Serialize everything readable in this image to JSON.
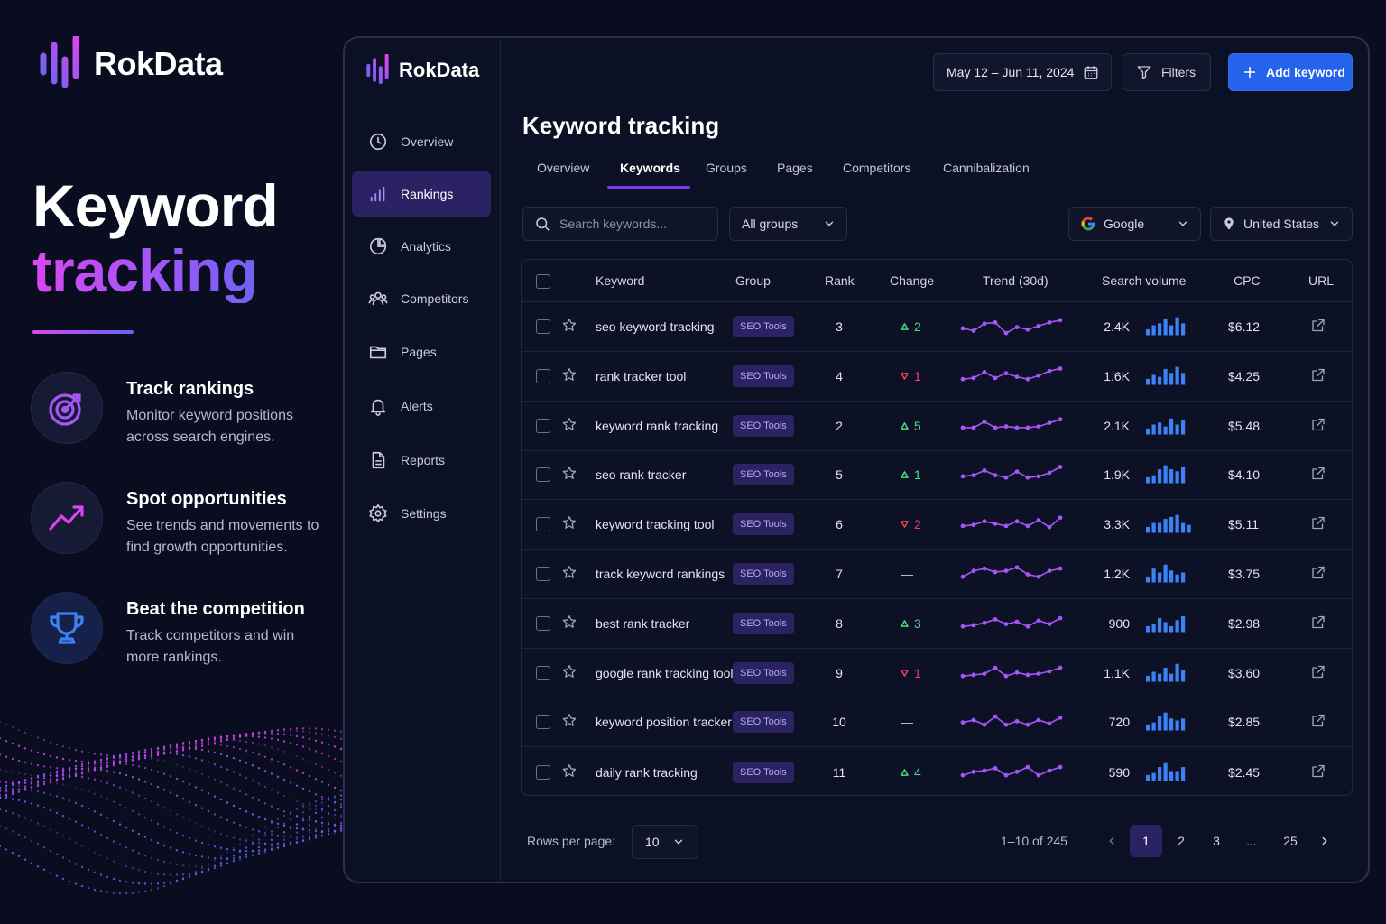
{
  "brand": {
    "name": "RokData"
  },
  "hero": {
    "line1": "Keyword",
    "line2": "tracking"
  },
  "features": [
    {
      "icon": "target-icon",
      "title": "Track rankings",
      "desc": "Monitor keyword positions across search engines."
    },
    {
      "icon": "trending-up-icon",
      "title": "Spot opportunities",
      "desc": "See trends and movements to find growth opportunities."
    },
    {
      "icon": "trophy-icon",
      "title": "Beat the competition",
      "desc": "Track competitors and win more rankings."
    }
  ],
  "sidebar": {
    "items": [
      {
        "label": "Overview",
        "icon": "clock-icon"
      },
      {
        "label": "Rankings",
        "icon": "bar-chart-icon",
        "active": true
      },
      {
        "label": "Analytics",
        "icon": "pie-chart-icon"
      },
      {
        "label": "Competitors",
        "icon": "users-icon"
      },
      {
        "label": "Pages",
        "icon": "folder-icon"
      },
      {
        "label": "Alerts",
        "icon": "bell-icon"
      },
      {
        "label": "Reports",
        "icon": "document-icon"
      },
      {
        "label": "Settings",
        "icon": "gear-icon"
      }
    ]
  },
  "toolbar": {
    "date_range": "May 12 – Jun 11, 2024",
    "filters_label": "Filters",
    "add_label": "Add keyword"
  },
  "page": {
    "title": "Keyword tracking",
    "tabs": [
      "Overview",
      "Keywords",
      "Groups",
      "Pages",
      "Competitors",
      "Cannibalization"
    ],
    "active_tab": "Keywords"
  },
  "controls": {
    "search_placeholder": "Search keywords...",
    "group_select": "All groups",
    "engine_select": "Google",
    "country_select": "United States"
  },
  "table": {
    "columns": [
      "Keyword",
      "Group",
      "Rank",
      "Change",
      "Trend (30d)",
      "Search volume",
      "CPC",
      "URL"
    ],
    "rows": [
      {
        "keyword": "seo keyword tracking",
        "group": "SEO Tools",
        "rank": "3",
        "change_dir": "up",
        "change": "2",
        "volume": "2.4K",
        "cpc": "$6.12"
      },
      {
        "keyword": "rank tracker tool",
        "group": "SEO Tools",
        "rank": "4",
        "change_dir": "down",
        "change": "1",
        "volume": "1.6K",
        "cpc": "$4.25"
      },
      {
        "keyword": "keyword rank tracking",
        "group": "SEO Tools",
        "rank": "2",
        "change_dir": "up",
        "change": "5",
        "volume": "2.1K",
        "cpc": "$5.48"
      },
      {
        "keyword": "seo rank tracker",
        "group": "SEO Tools",
        "rank": "5",
        "change_dir": "up",
        "change": "1",
        "volume": "1.9K",
        "cpc": "$4.10"
      },
      {
        "keyword": "keyword tracking tool",
        "group": "SEO Tools",
        "rank": "6",
        "change_dir": "down",
        "change": "2",
        "volume": "3.3K",
        "cpc": "$5.11"
      },
      {
        "keyword": "track keyword rankings",
        "group": "SEO Tools",
        "rank": "7",
        "change_dir": "flat",
        "change": "—",
        "volume": "1.2K",
        "cpc": "$3.75"
      },
      {
        "keyword": "best rank tracker",
        "group": "SEO Tools",
        "rank": "8",
        "change_dir": "up",
        "change": "3",
        "volume": "900",
        "cpc": "$2.98"
      },
      {
        "keyword": "google rank tracking tool",
        "group": "SEO Tools",
        "rank": "9",
        "change_dir": "down",
        "change": "1",
        "volume": "1.1K",
        "cpc": "$3.60"
      },
      {
        "keyword": "keyword position tracker",
        "group": "SEO Tools",
        "rank": "10",
        "change_dir": "flat",
        "change": "—",
        "volume": "720",
        "cpc": "$2.85"
      },
      {
        "keyword": "daily rank tracking",
        "group": "SEO Tools",
        "rank": "11",
        "change_dir": "up",
        "change": "4",
        "volume": "590",
        "cpc": "$2.45"
      }
    ]
  },
  "footer": {
    "rows_per_page_label": "Rows per page:",
    "rows_per_page": "10",
    "range": "1–10 of 245",
    "pages": [
      "1",
      "2",
      "3",
      "...",
      "25"
    ],
    "current_page": "1"
  },
  "colors": {
    "accent": "#7c3aed",
    "primary_button": "#2563eb",
    "up": "#4ade80",
    "down": "#f43f5e",
    "sparkline": "#a855f7",
    "volume_bars": "#3b82f6"
  }
}
